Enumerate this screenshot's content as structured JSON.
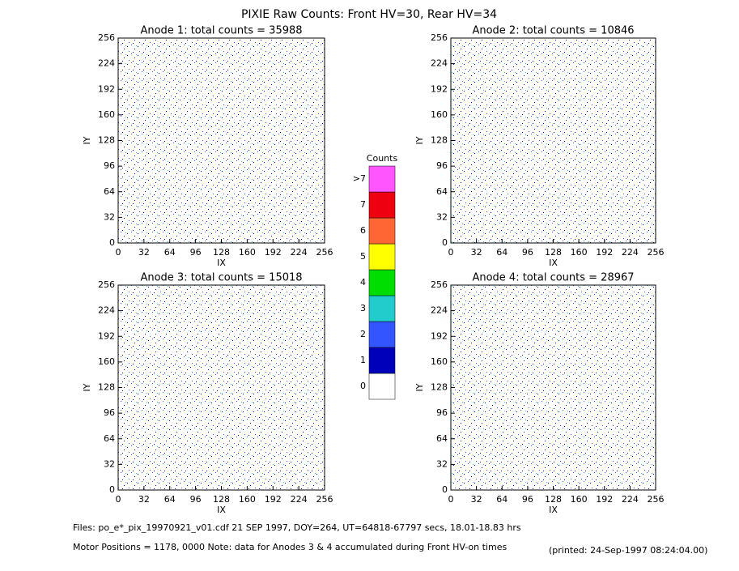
{
  "title": "PIXIE Raw Counts:  Front HV=30, Rear HV=34",
  "chart_data": [
    {
      "type": "heatmap",
      "title": "Anode 1: total counts = 35988",
      "xlabel": "IX",
      "ylabel": "IY",
      "xlim": [
        0,
        256
      ],
      "ylim": [
        0,
        256
      ],
      "xticks": [
        0,
        32,
        64,
        96,
        128,
        160,
        192,
        224,
        256
      ],
      "yticks": [
        0,
        32,
        64,
        96,
        128,
        160,
        192,
        224,
        256
      ]
    },
    {
      "type": "heatmap",
      "title": "Anode 2: total counts = 10846",
      "xlabel": "IX",
      "ylabel": "IY",
      "xlim": [
        0,
        256
      ],
      "ylim": [
        0,
        256
      ],
      "xticks": [
        0,
        32,
        64,
        96,
        128,
        160,
        192,
        224,
        256
      ],
      "yticks": [
        0,
        32,
        64,
        96,
        128,
        160,
        192,
        224,
        256
      ]
    },
    {
      "type": "heatmap",
      "title": "Anode 3: total counts = 15018",
      "xlabel": "IX",
      "ylabel": "IY",
      "xlim": [
        0,
        256
      ],
      "ylim": [
        0,
        256
      ],
      "xticks": [
        0,
        32,
        64,
        96,
        128,
        160,
        192,
        224,
        256
      ],
      "yticks": [
        0,
        32,
        64,
        96,
        128,
        160,
        192,
        224,
        256
      ]
    },
    {
      "type": "heatmap",
      "title": "Anode 4: total counts = 28967",
      "xlabel": "IX",
      "ylabel": "IY",
      "xlim": [
        0,
        256
      ],
      "ylim": [
        0,
        256
      ],
      "xticks": [
        0,
        32,
        64,
        96,
        128,
        160,
        192,
        224,
        256
      ],
      "yticks": [
        0,
        32,
        64,
        96,
        128,
        160,
        192,
        224,
        256
      ]
    }
  ],
  "colorbar": {
    "title": "Counts",
    "levels": [
      {
        "label": "0",
        "color": "#ffffff"
      },
      {
        "label": "1",
        "color": "#0000bb"
      },
      {
        "label": "2",
        "color": "#3355ff"
      },
      {
        "label": "3",
        "color": "#22cccc"
      },
      {
        "label": "4",
        "color": "#00dd00"
      },
      {
        "label": "5",
        "color": "#ffff00"
      },
      {
        "label": "6",
        "color": "#ff6633"
      },
      {
        "label": "7",
        "color": "#ee0011"
      },
      {
        "label": ">7",
        "color": "#ff55ff"
      }
    ]
  },
  "footer": {
    "files": "Files: po_e*_pix_19970921_v01.cdf    21 SEP 1997, DOY=264, UT=64818-67797 secs, 18.01-18.83 hrs",
    "motor": "Motor Positions = 1178, 0000    Note: data for Anodes 3 & 4 accumulated during Front HV-on times",
    "printed": "(printed: 24-Sep-1997 08:24:04.00)"
  }
}
